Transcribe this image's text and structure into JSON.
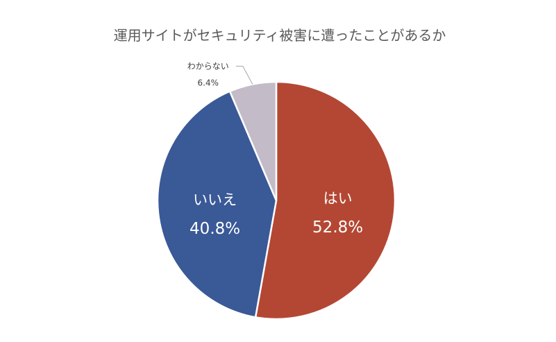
{
  "chart_data": {
    "type": "pie",
    "title": "運用サイトがセキュリティ被害に遭ったことがあるか",
    "slices": [
      {
        "label": "はい",
        "value": 52.8,
        "value_label": "52.8%",
        "color": "#B44733"
      },
      {
        "label": "いいえ",
        "value": 40.8,
        "value_label": "40.8%",
        "color": "#3A5997"
      },
      {
        "label": "わからない",
        "value": 6.4,
        "value_label": "6.4%",
        "color": "#C3BCC8"
      }
    ],
    "start_angle": "12 o'clock",
    "direction": "clockwise",
    "legend": "none"
  }
}
